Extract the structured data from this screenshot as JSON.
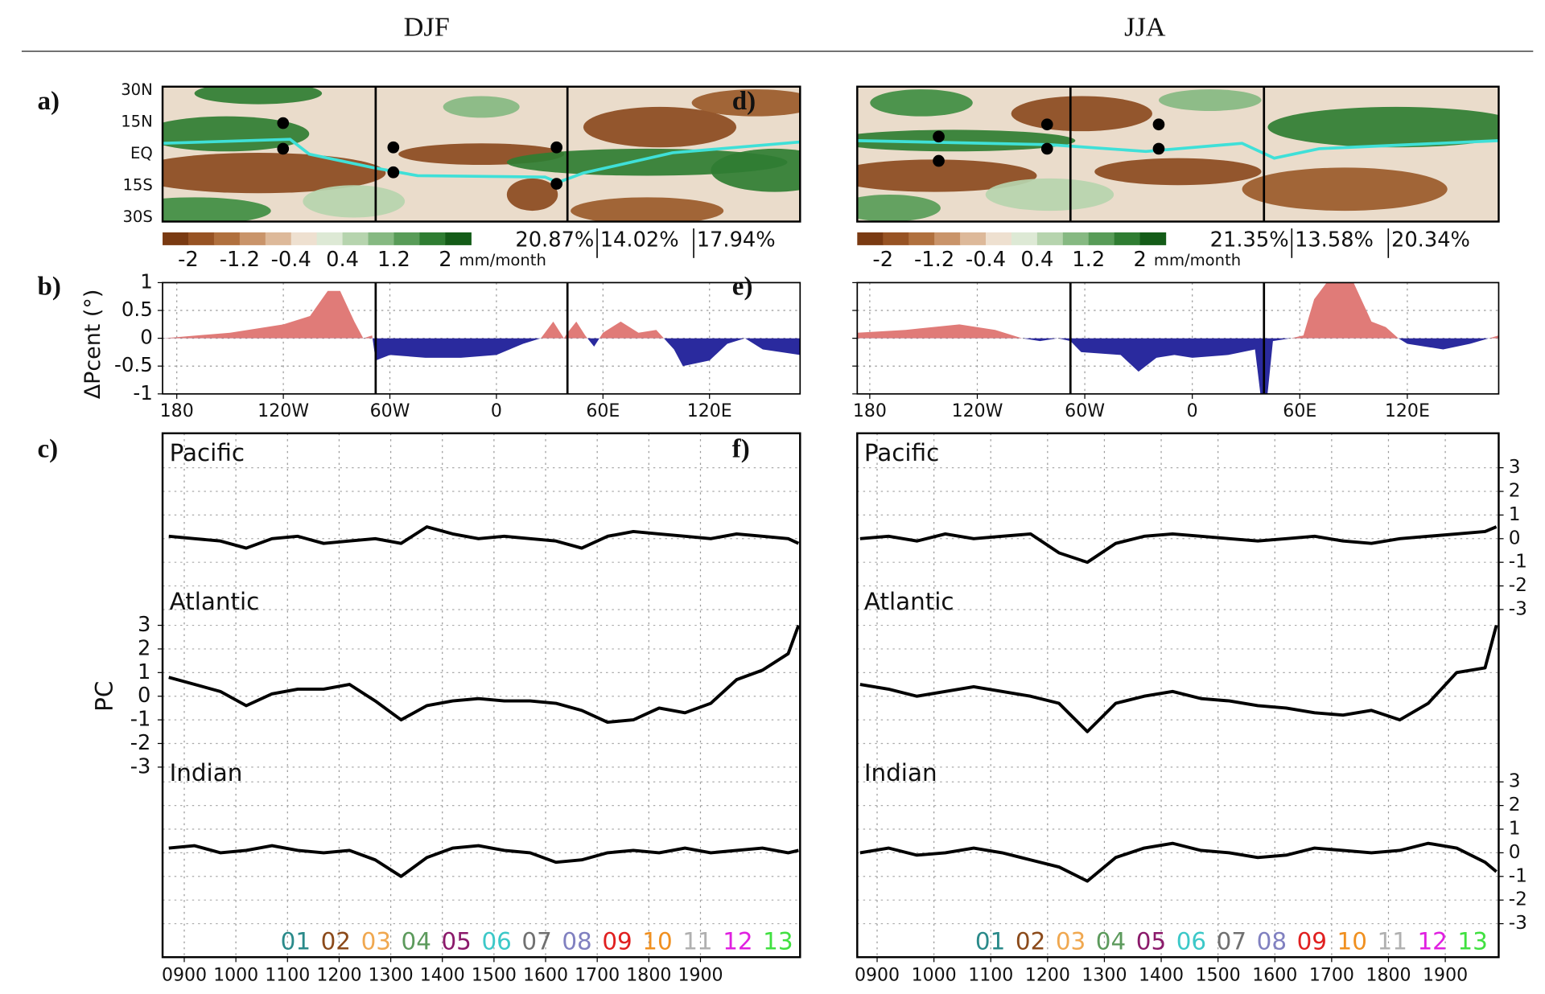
{
  "headers": [
    "DJF",
    "JJA"
  ],
  "chart_data": [
    {
      "type": "map",
      "panel_label": "a)",
      "lat_labels": [
        "30N",
        "15N",
        "EQ",
        "15S",
        "30S"
      ],
      "xlim": [
        -188,
        171
      ],
      "region_bounds_lon": [
        -68,
        40
      ],
      "itcz_color": "#3fe0d8",
      "colorbar": {
        "colors": [
          "#7a3a12",
          "#975324",
          "#b0703e",
          "#c9946a",
          "#ddb99a",
          "#eee0d0",
          "#dde9d5",
          "#b6d4ae",
          "#86b982",
          "#589c58",
          "#2f7d32",
          "#145c18"
        ],
        "clim": [
          -2.4,
          2.4
        ],
        "ticks": [
          -2,
          -1.2,
          -0.4,
          0.4,
          1.2,
          2
        ],
        "unit": "mm/month"
      },
      "variance_labels": [
        "20.87%",
        "14.02%",
        "17.94%"
      ]
    },
    {
      "type": "area",
      "panel_label": "b)",
      "ylabel": "ΔPcent (°)",
      "show_ytick_labels": true,
      "grid": true,
      "x": [
        -188,
        -180,
        -150,
        -120,
        -105,
        -95,
        -88,
        -80,
        -75,
        -70,
        -68,
        -60,
        -40,
        -20,
        0,
        15,
        25,
        32,
        38,
        40,
        45,
        50,
        55,
        60,
        70,
        80,
        90,
        100,
        105,
        120,
        130,
        140,
        150,
        171
      ],
      "values": [
        0,
        0.02,
        0.1,
        0.25,
        0.4,
        0.85,
        0.85,
        0.3,
        0,
        0.05,
        -0.4,
        -0.3,
        -0.35,
        -0.35,
        -0.3,
        -0.1,
        0,
        0.3,
        0,
        0.1,
        0.3,
        0.05,
        -0.15,
        0.1,
        0.3,
        0.1,
        0.15,
        -0.2,
        -0.5,
        -0.4,
        -0.1,
        0,
        -0.2,
        -0.3
      ],
      "pos_color": "#e07b78",
      "neg_color": "#2a2a9e",
      "xlim": [
        -188,
        171
      ],
      "ylim": [
        -1,
        1
      ],
      "region_bounds_lon": [
        -68,
        40
      ],
      "xticks": [
        {
          "value": -180,
          "label": "180"
        },
        {
          "value": -120,
          "label": "120W"
        },
        {
          "value": -60,
          "label": "60W"
        },
        0,
        {
          "value": 60,
          "label": "60E"
        },
        {
          "value": 120,
          "label": "120E"
        }
      ],
      "yticks": [
        1,
        0.5,
        0,
        -0.5,
        -1
      ]
    },
    {
      "type": "line",
      "panel_label": "c)",
      "ylabel": "PC",
      "grid": true,
      "xlim": [
        858,
        2093
      ],
      "xticks": [
        {
          "value": 900,
          "label": "0900"
        },
        1000,
        1100,
        1200,
        1300,
        1400,
        1500,
        1600,
        1700,
        1800,
        1900
      ],
      "x": [
        870,
        920,
        970,
        1020,
        1070,
        1120,
        1170,
        1220,
        1270,
        1320,
        1370,
        1420,
        1470,
        1520,
        1570,
        1620,
        1670,
        1720,
        1770,
        1820,
        1870,
        1920,
        1970,
        2020,
        2070,
        2090
      ],
      "series": [
        {
          "name": "Pacific",
          "color": "#000000",
          "yaxis": "none",
          "ylim": [
            -3,
            3
          ],
          "yticks": [
            3,
            2,
            1,
            0,
            -1,
            -2,
            -3
          ],
          "values": [
            0.1,
            0,
            -0.1,
            -0.4,
            0,
            0.1,
            -0.2,
            -0.1,
            0,
            -0.2,
            0.5,
            0.2,
            0,
            0.1,
            0,
            -0.1,
            -0.4,
            0.1,
            0.3,
            0.2,
            0.1,
            0,
            0.2,
            0.1,
            0,
            -0.2
          ]
        },
        {
          "name": "Atlantic",
          "color": "#000000",
          "yaxis": "left",
          "ylim": [
            -3,
            3
          ],
          "yticks": [
            3,
            2,
            1,
            0,
            -1,
            -2,
            -3
          ],
          "values": [
            0.8,
            0.5,
            0.2,
            -0.4,
            0.1,
            0.3,
            0.3,
            0.5,
            -0.2,
            -1.0,
            -0.4,
            -0.2,
            -0.1,
            -0.2,
            -0.2,
            -0.3,
            -0.6,
            -1.1,
            -1.0,
            -0.5,
            -0.7,
            -0.3,
            0.7,
            1.1,
            1.8,
            3.0
          ]
        },
        {
          "name": "Indian",
          "color": "#000000",
          "yaxis": "none",
          "ylim": [
            -3,
            3
          ],
          "yticks": [
            3,
            2,
            1,
            0,
            -1,
            -2,
            -3
          ],
          "values": [
            0.2,
            0.3,
            0,
            0.1,
            0.3,
            0.1,
            0,
            0.1,
            -0.3,
            -1.0,
            -0.2,
            0.2,
            0.3,
            0.1,
            0,
            -0.4,
            -0.3,
            0,
            0.1,
            0,
            0.2,
            0,
            0.1,
            0.2,
            0,
            0.1
          ]
        }
      ],
      "members": [
        {
          "name": "01",
          "color": "#2a8a8a"
        },
        {
          "name": "02",
          "color": "#8b4a1a"
        },
        {
          "name": "03",
          "color": "#f0a850"
        },
        {
          "name": "04",
          "color": "#5c9a5c"
        },
        {
          "name": "05",
          "color": "#8b1a6b"
        },
        {
          "name": "06",
          "color": "#3cc8c8"
        },
        {
          "name": "07",
          "color": "#707070"
        },
        {
          "name": "08",
          "color": "#8080c0"
        },
        {
          "name": "09",
          "color": "#e02020"
        },
        {
          "name": "10",
          "color": "#f09020"
        },
        {
          "name": "11",
          "color": "#b0b0b0"
        },
        {
          "name": "12",
          "color": "#e020e0"
        },
        {
          "name": "13",
          "color": "#40e040"
        }
      ]
    },
    {
      "type": "map",
      "panel_label": "d)",
      "lat_labels": [],
      "xlim": [
        -187,
        171
      ],
      "region_bounds_lon": [
        -68,
        40
      ],
      "itcz_color": "#3fe0d8",
      "colorbar": {
        "colors": [
          "#7a3a12",
          "#975324",
          "#b0703e",
          "#c9946a",
          "#ddb99a",
          "#eee0d0",
          "#dde9d5",
          "#b6d4ae",
          "#86b982",
          "#589c58",
          "#2f7d32",
          "#145c18"
        ],
        "clim": [
          -2.4,
          2.4
        ],
        "ticks": [
          -2,
          -1.2,
          -0.4,
          0.4,
          1.2,
          2
        ],
        "unit": "mm/month"
      },
      "variance_labels": [
        "21.35%",
        "13.58%",
        "20.34%"
      ]
    },
    {
      "type": "area",
      "panel_label": "e)",
      "show_ytick_labels": false,
      "grid": true,
      "x": [
        -187,
        -160,
        -130,
        -110,
        -95,
        -85,
        -75,
        -68,
        -62,
        -40,
        -30,
        -20,
        -10,
        0,
        20,
        35,
        38,
        42,
        45,
        55,
        62,
        68,
        75,
        90,
        100,
        108,
        115,
        120,
        140,
        155,
        171
      ],
      "values": [
        0.1,
        0.15,
        0.25,
        0.15,
        0,
        -0.05,
        0,
        -0.05,
        -0.25,
        -0.3,
        -0.6,
        -0.35,
        -0.3,
        -0.35,
        -0.3,
        -0.2,
        -1.0,
        -1.0,
        -0.05,
        0,
        0.05,
        0.7,
        1.0,
        1.0,
        0.3,
        0.2,
        0,
        -0.1,
        -0.2,
        -0.1,
        0.05
      ],
      "pos_color": "#e07b78",
      "neg_color": "#2a2a9e",
      "xlim": [
        -187,
        171
      ],
      "ylim": [
        -1,
        1
      ],
      "region_bounds_lon": [
        -68,
        40
      ],
      "xticks": [
        {
          "value": -180,
          "label": "180"
        },
        {
          "value": -120,
          "label": "120W"
        },
        {
          "value": -60,
          "label": "60W"
        },
        0,
        {
          "value": 60,
          "label": "60E"
        },
        {
          "value": 120,
          "label": "120E"
        }
      ],
      "yticks": [
        1,
        0.5,
        0,
        -0.5,
        -1
      ]
    },
    {
      "type": "line",
      "panel_label": "f)",
      "grid": true,
      "xlim": [
        865,
        1994
      ],
      "xticks": [
        {
          "value": 900,
          "label": "0900"
        },
        1000,
        1100,
        1200,
        1300,
        1400,
        1500,
        1600,
        1700,
        1800,
        1900
      ],
      "x": [
        870,
        920,
        970,
        1020,
        1070,
        1120,
        1170,
        1220,
        1270,
        1320,
        1370,
        1420,
        1470,
        1520,
        1570,
        1620,
        1670,
        1720,
        1770,
        1820,
        1870,
        1920,
        1970,
        1990
      ],
      "series": [
        {
          "name": "Pacific",
          "color": "#000000",
          "yaxis": "right",
          "ylim": [
            -3,
            3
          ],
          "yticks": [
            3,
            2,
            1,
            0,
            -1,
            -2,
            -3
          ],
          "values": [
            0,
            0.1,
            -0.1,
            0.2,
            0,
            0.1,
            0.2,
            -0.6,
            -1.0,
            -0.2,
            0.1,
            0.2,
            0.1,
            0,
            -0.1,
            0,
            0.1,
            -0.1,
            -0.2,
            0,
            0.1,
            0.2,
            0.3,
            0.5
          ]
        },
        {
          "name": "Atlantic",
          "color": "#000000",
          "yaxis": "none",
          "ylim": [
            -3,
            3
          ],
          "yticks": [
            3,
            2,
            1,
            0,
            -1,
            -2,
            -3
          ],
          "values": [
            0.5,
            0.3,
            0,
            0.2,
            0.4,
            0.2,
            0,
            -0.3,
            -1.5,
            -0.3,
            0,
            0.2,
            -0.1,
            -0.2,
            -0.4,
            -0.5,
            -0.7,
            -0.8,
            -0.6,
            -1.0,
            -0.3,
            1.0,
            1.2,
            3.0
          ]
        },
        {
          "name": "Indian",
          "color": "#000000",
          "yaxis": "right",
          "ylim": [
            -3,
            3
          ],
          "yticks": [
            3,
            2,
            1,
            0,
            -1,
            -2,
            -3
          ],
          "values": [
            0,
            0.2,
            -0.1,
            0,
            0.2,
            0,
            -0.3,
            -0.6,
            -1.2,
            -0.2,
            0.2,
            0.4,
            0.1,
            0,
            -0.2,
            -0.1,
            0.2,
            0.1,
            0,
            0.1,
            0.4,
            0.2,
            -0.4,
            -0.8
          ]
        }
      ],
      "members": [
        {
          "name": "01",
          "color": "#2a8a8a"
        },
        {
          "name": "02",
          "color": "#8b4a1a"
        },
        {
          "name": "03",
          "color": "#f0a850"
        },
        {
          "name": "04",
          "color": "#5c9a5c"
        },
        {
          "name": "05",
          "color": "#8b1a6b"
        },
        {
          "name": "06",
          "color": "#3cc8c8"
        },
        {
          "name": "07",
          "color": "#707070"
        },
        {
          "name": "08",
          "color": "#8080c0"
        },
        {
          "name": "09",
          "color": "#e02020"
        },
        {
          "name": "10",
          "color": "#f09020"
        },
        {
          "name": "11",
          "color": "#b0b0b0"
        },
        {
          "name": "12",
          "color": "#e020e0"
        },
        {
          "name": "13",
          "color": "#40e040"
        }
      ]
    }
  ]
}
